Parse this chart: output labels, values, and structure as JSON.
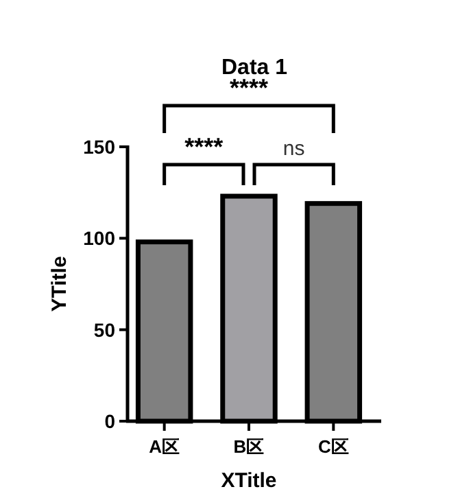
{
  "chart_data": {
    "type": "bar",
    "title": "Data 1",
    "xlabel": "XTitle",
    "ylabel": "YTitle",
    "categories": [
      "A区",
      "B区",
      "C区"
    ],
    "values": [
      98,
      123,
      119
    ],
    "colors": [
      "#808080",
      "#a1a0a4",
      "#808080"
    ],
    "ylim": [
      0,
      150
    ],
    "yticks": [
      0,
      50,
      100,
      150
    ],
    "grid": false,
    "annotations": [
      "****",
      "****",
      "ns"
    ]
  }
}
